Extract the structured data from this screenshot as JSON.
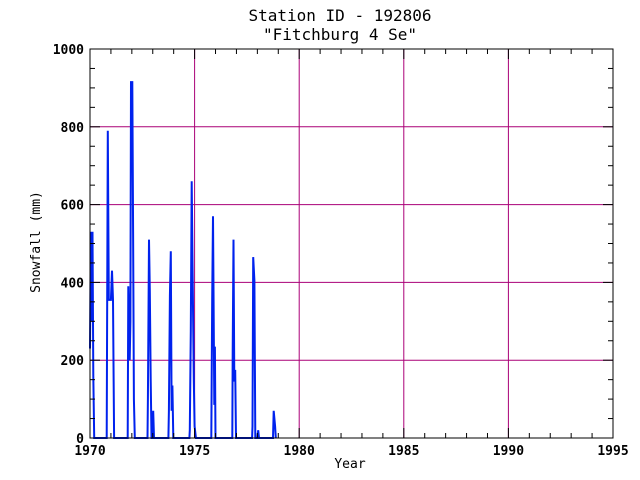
{
  "chart_data": {
    "type": "line",
    "title": "Station ID - 192806",
    "subtitle": "\"Fitchburg 4 Se\"",
    "xlabel": "Year",
    "ylabel": "Snowfall (mm)",
    "xlim": [
      1970,
      1995
    ],
    "ylim": [
      0,
      1000
    ],
    "xticks": [
      1970,
      1975,
      1980,
      1985,
      1990,
      1995
    ],
    "yticks": [
      0,
      200,
      400,
      600,
      800,
      1000
    ],
    "grid": true,
    "colors": {
      "series": "#0022ee",
      "grid": "#aa0077",
      "axes": "#000000"
    },
    "series": [
      {
        "values": [
          [
            1970.0,
            230
          ],
          [
            1970.04,
            530
          ],
          [
            1970.08,
            300
          ],
          [
            1970.12,
            530
          ],
          [
            1970.16,
            160
          ],
          [
            1970.2,
            0
          ],
          [
            1970.8,
            0
          ],
          [
            1970.85,
            790
          ],
          [
            1970.9,
            355
          ],
          [
            1971.0,
            355
          ],
          [
            1971.05,
            430
          ],
          [
            1971.1,
            355
          ],
          [
            1971.15,
            0
          ],
          [
            1971.8,
            0
          ],
          [
            1971.83,
            390
          ],
          [
            1971.9,
            200
          ],
          [
            1971.93,
            300
          ],
          [
            1971.96,
            915
          ],
          [
            1972.02,
            915
          ],
          [
            1972.06,
            530
          ],
          [
            1972.1,
            100
          ],
          [
            1972.14,
            0
          ],
          [
            1972.75,
            0
          ],
          [
            1972.77,
            100
          ],
          [
            1972.82,
            510
          ],
          [
            1972.86,
            380
          ],
          [
            1972.9,
            150
          ],
          [
            1972.94,
            0
          ],
          [
            1973.0,
            0
          ],
          [
            1973.02,
            70
          ],
          [
            1973.06,
            0
          ],
          [
            1973.75,
            0
          ],
          [
            1973.77,
            70
          ],
          [
            1973.82,
            365
          ],
          [
            1973.86,
            480
          ],
          [
            1973.9,
            70
          ],
          [
            1973.94,
            135
          ],
          [
            1973.98,
            0
          ],
          [
            1974.75,
            0
          ],
          [
            1974.77,
            20
          ],
          [
            1974.82,
            275
          ],
          [
            1974.86,
            660
          ],
          [
            1974.9,
            455
          ],
          [
            1974.96,
            150
          ],
          [
            1975.0,
            30
          ],
          [
            1975.06,
            0
          ],
          [
            1975.8,
            0
          ],
          [
            1975.84,
            360
          ],
          [
            1975.88,
            570
          ],
          [
            1975.94,
            85
          ],
          [
            1975.97,
            235
          ],
          [
            1976.0,
            0
          ],
          [
            1976.8,
            0
          ],
          [
            1976.82,
            225
          ],
          [
            1976.86,
            510
          ],
          [
            1976.9,
            145
          ],
          [
            1976.94,
            175
          ],
          [
            1976.98,
            0
          ],
          [
            1977.75,
            0
          ],
          [
            1977.77,
            30
          ],
          [
            1977.8,
            465
          ],
          [
            1977.86,
            405
          ],
          [
            1977.9,
            0
          ],
          [
            1978.0,
            0
          ],
          [
            1978.04,
            20
          ],
          [
            1978.08,
            0
          ],
          [
            1978.75,
            0
          ],
          [
            1978.78,
            70
          ],
          [
            1978.85,
            30
          ],
          [
            1978.88,
            0
          ]
        ]
      }
    ]
  }
}
